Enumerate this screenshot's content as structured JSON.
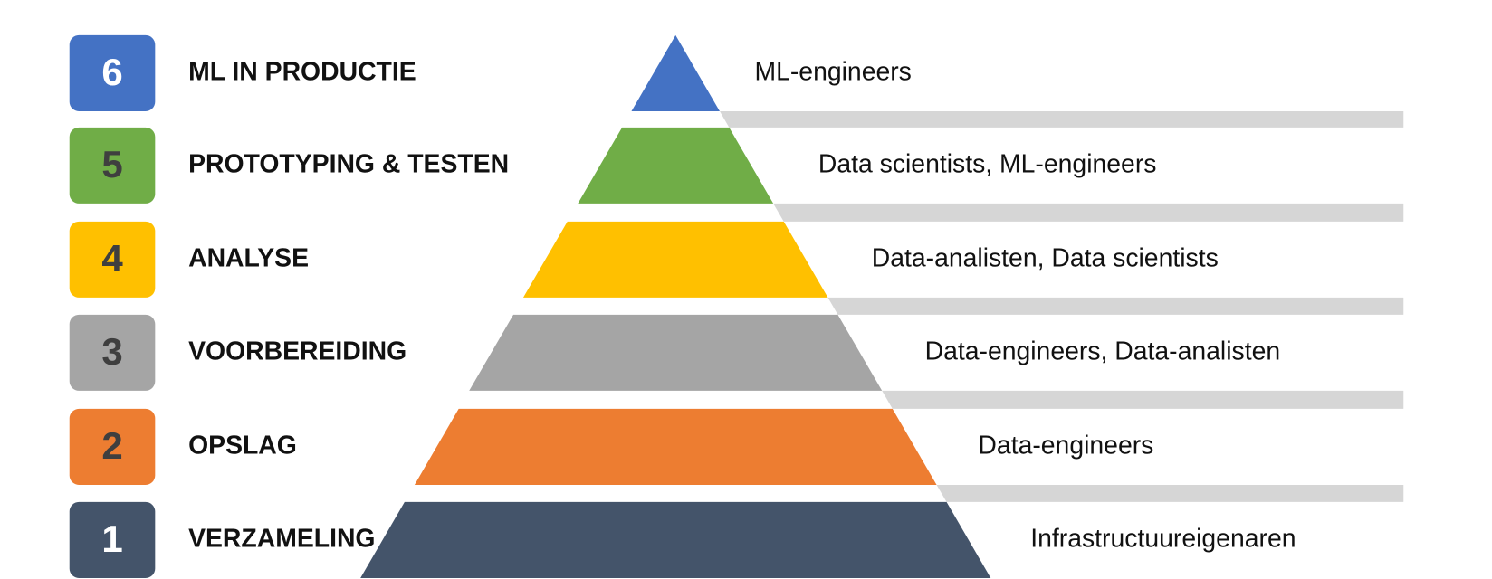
{
  "levels": [
    {
      "number": 6,
      "title": "ML IN PRODUCTIE",
      "roles": "ML-engineers"
    },
    {
      "number": 5,
      "title": "PROTOTYPING & TESTEN",
      "roles": "Data scientists, ML-engineers"
    },
    {
      "number": 4,
      "title": "ANALYSE",
      "roles": "Data-analisten, Data scientists"
    },
    {
      "number": 3,
      "title": "VOORBEREIDING",
      "roles": "Data-engineers, Data-analisten"
    },
    {
      "number": 2,
      "title": "OPSLAG",
      "roles": "Data-engineers"
    },
    {
      "number": 1,
      "title": "VERZAMELING",
      "roles": "Infrastructuureigenaren"
    }
  ]
}
